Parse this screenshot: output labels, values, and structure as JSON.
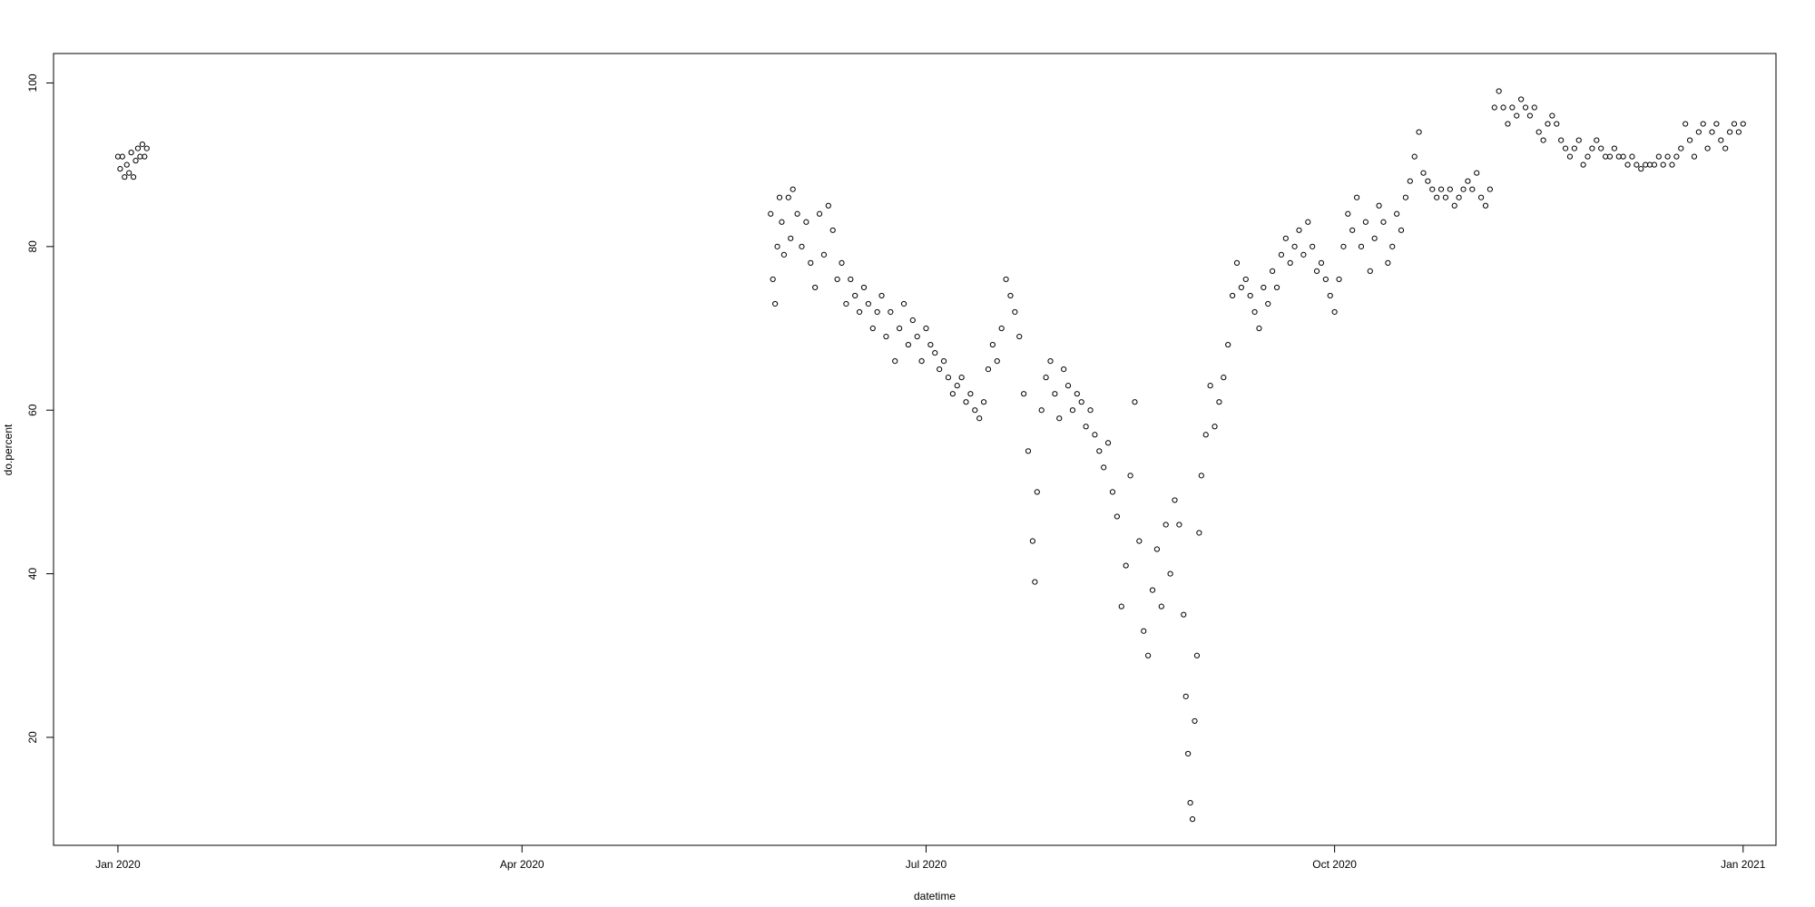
{
  "chart_data": {
    "type": "scatter",
    "x_label": "datetime",
    "y_label": "do.percent",
    "color": "#000000",
    "xlim": [
      -14.5,
      373.4
    ],
    "xticks": [
      {
        "value": 0,
        "label": "Jan 2020"
      },
      {
        "value": 91,
        "label": "Apr 2020"
      },
      {
        "value": 182,
        "label": "Jul 2020"
      },
      {
        "value": 274,
        "label": "Oct 2020"
      },
      {
        "value": 366,
        "label": "Jan 2021"
      }
    ],
    "ylim": [
      6.8,
      103.6
    ],
    "yticks": [
      20,
      40,
      60,
      80,
      100
    ],
    "x": [
      0,
      0.5,
      1,
      1.5,
      2,
      2.5,
      3,
      3.5,
      4,
      4.5,
      5,
      5.5,
      6,
      6.5,
      147,
      147.5,
      148,
      148.5,
      149,
      149.5,
      150,
      151,
      151.5,
      152,
      153,
      154,
      155,
      156,
      157,
      158,
      159,
      160,
      161,
      162,
      163,
      164,
      165,
      166,
      167,
      168,
      169,
      170,
      171,
      172,
      173,
      174,
      175,
      176,
      177,
      178,
      179,
      180,
      181,
      182,
      183,
      184,
      185,
      186,
      187,
      188,
      189,
      190,
      191,
      192,
      193,
      194,
      195,
      196,
      197,
      198,
      199,
      200,
      201,
      202,
      203,
      204,
      205,
      206,
      206.5,
      207,
      208,
      209,
      210,
      211,
      212,
      213,
      214,
      215,
      216,
      217,
      218,
      219,
      220,
      221,
      222,
      223,
      224,
      225,
      226,
      227,
      228,
      229,
      230,
      231,
      232,
      233,
      234,
      235,
      236,
      237,
      238,
      239,
      240,
      240.5,
      241,
      241.5,
      242,
      242.5,
      243,
      243.5,
      244,
      245,
      246,
      247,
      248,
      249,
      250,
      251,
      252,
      253,
      254,
      255,
      256,
      257,
      258,
      259,
      260,
      261,
      262,
      263,
      264,
      265,
      266,
      267,
      268,
      269,
      270,
      271,
      272,
      273,
      274,
      275,
      276,
      277,
      278,
      279,
      280,
      281,
      282,
      283,
      284,
      285,
      286,
      287,
      288,
      289,
      290,
      291,
      292,
      293,
      294,
      295,
      296,
      297,
      298,
      299,
      300,
      301,
      302,
      303,
      304,
      305,
      306,
      307,
      308,
      309,
      310,
      311,
      312,
      313,
      314,
      315,
      316,
      317,
      318,
      319,
      320,
      321,
      322,
      323,
      324,
      325,
      326,
      327,
      328,
      329,
      330,
      331,
      332,
      333,
      334,
      335,
      336,
      337,
      338,
      339,
      340,
      341,
      342,
      343,
      344,
      345,
      346,
      347,
      348,
      349,
      350,
      351,
      352,
      353,
      354,
      355,
      356,
      357,
      358,
      359,
      360,
      361,
      362,
      363,
      364,
      365,
      366
    ],
    "values": [
      91,
      89.5,
      91,
      88.5,
      90,
      89,
      91.5,
      88.5,
      90.5,
      92,
      91,
      92.5,
      91,
      92,
      84,
      76,
      73,
      80,
      86,
      83,
      79,
      86,
      81,
      87,
      84,
      80,
      83,
      78,
      75,
      84,
      79,
      85,
      82,
      76,
      78,
      73,
      76,
      74,
      72,
      75,
      73,
      70,
      72,
      74,
      69,
      72,
      66,
      70,
      73,
      68,
      71,
      69,
      66,
      70,
      68,
      67,
      65,
      66,
      64,
      62,
      63,
      64,
      61,
      62,
      60,
      59,
      61,
      65,
      68,
      66,
      70,
      76,
      74,
      72,
      69,
      62,
      55,
      44,
      39,
      50,
      60,
      64,
      66,
      62,
      59,
      65,
      63,
      60,
      62,
      61,
      58,
      60,
      57,
      55,
      53,
      56,
      50,
      47,
      36,
      41,
      52,
      61,
      44,
      33,
      30,
      38,
      43,
      36,
      46,
      40,
      49,
      46,
      35,
      25,
      18,
      12,
      10,
      22,
      30,
      45,
      52,
      57,
      63,
      58,
      61,
      64,
      68,
      74,
      78,
      75,
      76,
      74,
      72,
      70,
      75,
      73,
      77,
      75,
      79,
      81,
      78,
      80,
      82,
      79,
      83,
      80,
      77,
      78,
      76,
      74,
      72,
      76,
      80,
      84,
      82,
      86,
      80,
      83,
      77,
      81,
      85,
      83,
      78,
      80,
      84,
      82,
      86,
      88,
      91,
      94,
      89,
      88,
      87,
      86,
      87,
      86,
      87,
      85,
      86,
      87,
      88,
      87,
      89,
      86,
      85,
      87,
      97,
      99,
      97,
      95,
      97,
      96,
      98,
      97,
      96,
      97,
      94,
      93,
      95,
      96,
      95,
      93,
      92,
      91,
      92,
      93,
      90,
      91,
      92,
      93,
      92,
      91,
      91,
      92,
      91,
      91,
      90,
      91,
      90,
      89.5,
      90,
      90,
      90,
      91,
      90,
      91,
      90,
      91,
      92,
      95,
      93,
      91,
      94,
      95,
      92,
      94,
      95,
      93,
      92,
      94,
      95,
      94,
      95
    ]
  }
}
